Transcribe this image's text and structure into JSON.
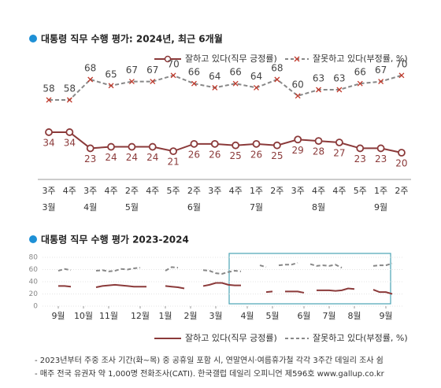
{
  "chart_data": [
    {
      "type": "line",
      "title": "대통령 직무 수행 평가: 2024년, 최근 6개월",
      "categories": [
        "3주",
        "4주",
        "3주",
        "4주",
        "2주",
        "4주",
        "5주",
        "2주",
        "3주",
        "4주",
        "1주",
        "2주",
        "3주",
        "4주",
        "4주",
        "5주",
        "1주",
        "2주"
      ],
      "months": [
        "3월",
        null,
        "4월",
        null,
        "5월",
        null,
        null,
        "6월",
        null,
        null,
        "7월",
        null,
        null,
        "8월",
        null,
        null,
        "9월",
        null
      ],
      "series": [
        {
          "name": "잘하고 있다(직무 긍정률)",
          "color": "#8b3a3a",
          "values": [
            34,
            34,
            23,
            24,
            24,
            24,
            21,
            26,
            26,
            25,
            26,
            25,
            29,
            28,
            27,
            23,
            23,
            20
          ]
        },
        {
          "name": "잘못하고 있다(부정률, %)",
          "color": "#888888",
          "values": [
            58,
            58,
            68,
            65,
            67,
            67,
            70,
            66,
            64,
            66,
            64,
            68,
            60,
            63,
            63,
            66,
            67,
            70
          ]
        }
      ]
    },
    {
      "type": "line",
      "title": "대통령 직무 수행 평가 2023-2024",
      "x": [
        1,
        2,
        3,
        4,
        7,
        8,
        9,
        10,
        11,
        12,
        13,
        14,
        15,
        16,
        18,
        19,
        20,
        21,
        22,
        24,
        25,
        26,
        27,
        28,
        29,
        30,
        31,
        33,
        34,
        35,
        36,
        37,
        38,
        39,
        40,
        41,
        42,
        43,
        44,
        45,
        46,
        47,
        48,
        49,
        51,
        52,
        53,
        54
      ],
      "xlim": [
        -0.5,
        54.5
      ],
      "xticks": [
        {
          "value": 1,
          "label": "9월"
        },
        {
          "value": 5,
          "label": "10월"
        },
        {
          "value": 9,
          "label": "11월"
        },
        {
          "value": 14,
          "label": "12월"
        },
        {
          "value": 18,
          "label": "1월"
        },
        {
          "value": 22,
          "label": "2월"
        },
        {
          "value": 26,
          "label": "3월"
        },
        {
          "value": 31,
          "label": "4월"
        },
        {
          "value": 35,
          "label": "5월"
        },
        {
          "value": 40,
          "label": "6월"
        },
        {
          "value": 44,
          "label": "7월"
        },
        {
          "value": 48,
          "label": "8월"
        },
        {
          "value": 53,
          "label": "9월"
        }
      ],
      "ylim": [
        0,
        80
      ],
      "yticks": [
        0,
        20,
        40,
        60,
        80
      ],
      "grid": true,
      "series": [
        {
          "name": "잘하고 있다(직무 긍정률)",
          "color": "#8b3a3a",
          "values": [
            33,
            33,
            32,
            null,
            31,
            33,
            34,
            35,
            34,
            33,
            32,
            32,
            32,
            null,
            33,
            32,
            31,
            29,
            null,
            33,
            35,
            38,
            38,
            35,
            34,
            34,
            null,
            null,
            23,
            24,
            null,
            24,
            24,
            24,
            22,
            null,
            26,
            26,
            26,
            25,
            26,
            29,
            28,
            null,
            27,
            23,
            23,
            20
          ]
        },
        {
          "name": "잘못하고 있다(부정률, %)",
          "color": "#888888",
          "values": [
            58,
            61,
            59,
            null,
            58,
            59,
            57,
            58,
            61,
            60,
            62,
            63,
            null,
            null,
            58,
            64,
            63,
            null,
            null,
            59,
            58,
            54,
            53,
            56,
            58,
            57,
            null,
            67,
            64,
            null,
            67,
            68,
            68,
            71,
            null,
            69,
            66,
            67,
            66,
            68,
            63,
            null,
            63,
            null,
            66,
            67,
            67,
            70
          ]
        }
      ]
    }
  ],
  "notes": [
    "- 2023년부터 주중 조사 기간(화~목) 중 공휴일 포함 시, 연말연시·여름휴가철 각각 3주간 데일리 조사 쉼",
    "- 매주 전국 유권자 약 1,000명 전화조사(CATI). 한국갤럽 데일리 오피니언 제596호 www.gallup.co.kr"
  ]
}
